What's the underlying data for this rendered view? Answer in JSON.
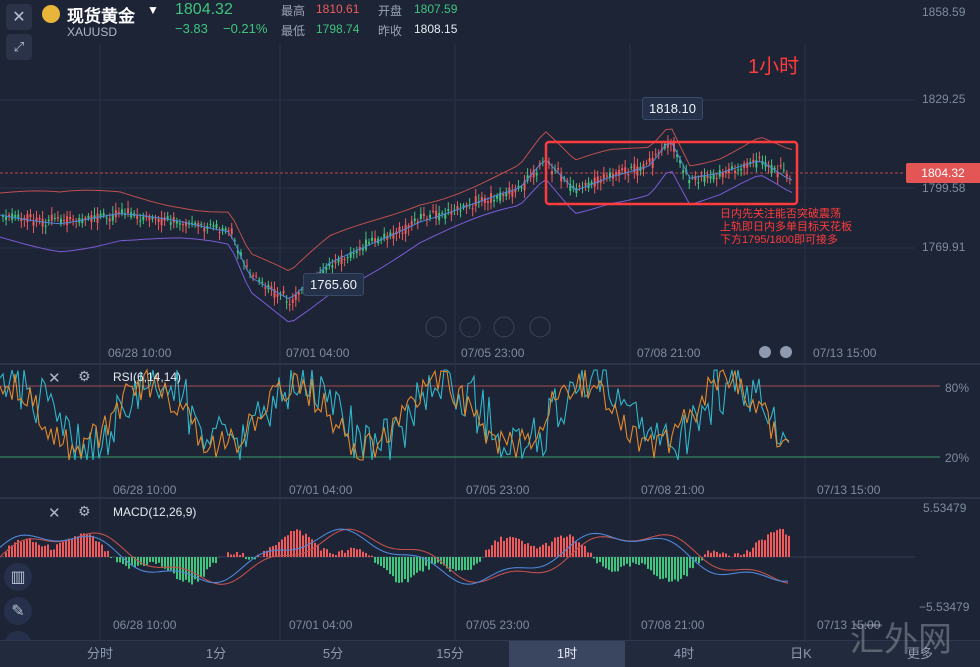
{
  "header": {
    "title": "现货黄金",
    "symbol": "XAUUSD",
    "price": "1804.32",
    "change": "−3.83",
    "change_pct": "−0.21%",
    "high_label": "最高",
    "high_value": "1810.61",
    "low_label": "最低",
    "low_value": "1798.74",
    "open_label": "开盘",
    "open_value": "1807.59",
    "prev_label": "昨收",
    "prev_value": "1808.15"
  },
  "main_chart": {
    "interval_label": "1小时",
    "y_ticks": [
      "1858.59",
      "1829.25",
      "1799.58",
      "1769.91"
    ],
    "current_price_tag": "1804.32",
    "high_marker": "1818.10",
    "low_marker": "1765.60",
    "annotation_lines": [
      "日内先关注能否突破震荡",
      "上轨即日内多单目标天花板",
      "下方1795/1800即可接多"
    ],
    "x_labels": [
      "06/28 10:00",
      "07/01 04:00",
      "07/05 23:00",
      "07/08 21:00",
      "07/13 15:00"
    ]
  },
  "rsi": {
    "title": "RSI(6,14,14)",
    "level_high": "80%",
    "level_low": "20%",
    "x_labels": [
      "06/28 10:00",
      "07/01 04:00",
      "07/05 23:00",
      "07/08 21:00",
      "07/13 15:00"
    ]
  },
  "macd": {
    "title": "MACD(12,26,9)",
    "y_top": "5.53479",
    "y_bottom": "−5.53479",
    "x_labels": [
      "06/28 10:00",
      "07/01 04:00",
      "07/05 23:00",
      "07/08 21:00",
      "07/13 15:00"
    ]
  },
  "tabs": [
    "分时",
    "1分",
    "5分",
    "15分",
    "1时",
    "4时",
    "日K",
    "更多"
  ],
  "active_tab": "1时",
  "watermark": "汇外网",
  "colors": {
    "up": "#ef5b5b",
    "down": "#3fc57d",
    "background": "#1c2436",
    "box": "#ff3b3b"
  },
  "icons": {
    "close": "close-icon",
    "expand": "expand-icon",
    "settings": "gear-icon",
    "pencil": "pencil-icon"
  }
}
